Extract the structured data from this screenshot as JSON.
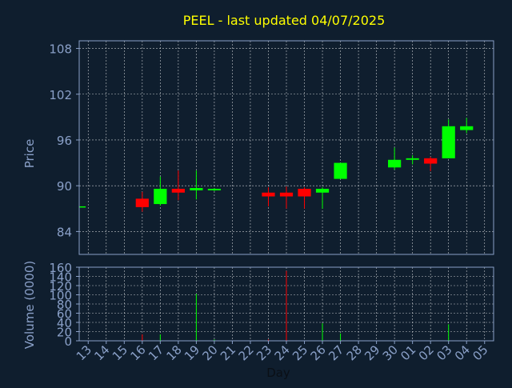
{
  "chart_data": {
    "type": "candlestick",
    "title": "PEEL - last updated 04/07/2025",
    "xlabel": "Day",
    "grid": true,
    "colors": {
      "background": "#0f1e2e",
      "axis": "#8aa0c8",
      "title": "#ffff00",
      "up": "#00ff00",
      "down": "#ff0000",
      "label": "#8aa0c8"
    },
    "categories": [
      "13",
      "14",
      "15",
      "16",
      "17",
      "18",
      "19",
      "20",
      "21",
      "22",
      "23",
      "24",
      "25",
      "26",
      "27",
      "28",
      "29",
      "30",
      "01",
      "02",
      "03",
      "04",
      "05"
    ],
    "price_panel": {
      "ylabel": "Price",
      "ylim": [
        81,
        109
      ],
      "yticks": [
        84,
        90,
        96,
        102,
        108
      ],
      "candles": [
        {
          "day": "13",
          "open": 87.3,
          "close": 87.3,
          "high": 87.3,
          "low": 87.3
        },
        {
          "day": "16",
          "open": 88.3,
          "close": 87.2,
          "high": 89.2,
          "low": 86.6
        },
        {
          "day": "17",
          "open": 87.6,
          "close": 89.6,
          "high": 91.2,
          "low": 87.4
        },
        {
          "day": "18",
          "open": 89.6,
          "close": 89.1,
          "high": 92.0,
          "low": 88.1
        },
        {
          "day": "19",
          "open": 89.4,
          "close": 89.7,
          "high": 92.0,
          "low": 88.2
        },
        {
          "day": "20",
          "open": 89.4,
          "close": 89.6,
          "high": 89.7,
          "low": 89.3
        },
        {
          "day": "23",
          "open": 89.1,
          "close": 88.6,
          "high": 89.8,
          "low": 87.3
        },
        {
          "day": "24",
          "open": 89.1,
          "close": 88.6,
          "high": 89.9,
          "low": 87.0
        },
        {
          "day": "25",
          "open": 89.6,
          "close": 88.6,
          "high": 89.8,
          "low": 87.0
        },
        {
          "day": "26",
          "open": 89.1,
          "close": 89.6,
          "high": 89.8,
          "low": 87.0
        },
        {
          "day": "27",
          "open": 90.9,
          "close": 93.0,
          "high": 93.0,
          "low": 90.9
        },
        {
          "day": "30",
          "open": 92.4,
          "close": 93.4,
          "high": 95.0,
          "low": 92.1
        },
        {
          "day": "01",
          "open": 93.4,
          "close": 93.6,
          "high": 94.0,
          "low": 92.8
        },
        {
          "day": "02",
          "open": 93.6,
          "close": 92.9,
          "high": 93.8,
          "low": 91.9
        },
        {
          "day": "03",
          "open": 93.6,
          "close": 97.8,
          "high": 98.7,
          "low": 93.6
        },
        {
          "day": "04",
          "open": 97.3,
          "close": 97.8,
          "high": 98.9,
          "low": 96.9
        }
      ]
    },
    "volume_panel": {
      "ylabel": "Volume (0000)",
      "ylim": [
        0,
        160
      ],
      "yticks": [
        0,
        20,
        40,
        60,
        80,
        100,
        120,
        140,
        160
      ],
      "bars": [
        {
          "day": "16",
          "value": 14,
          "direction": "down"
        },
        {
          "day": "17",
          "value": 14,
          "direction": "up"
        },
        {
          "day": "19",
          "value": 102,
          "direction": "up"
        },
        {
          "day": "20",
          "value": 3,
          "direction": "up"
        },
        {
          "day": "23",
          "value": 3,
          "direction": "down"
        },
        {
          "day": "24",
          "value": 152,
          "direction": "down"
        },
        {
          "day": "26",
          "value": 38,
          "direction": "up"
        },
        {
          "day": "27",
          "value": 16,
          "direction": "up"
        },
        {
          "day": "03",
          "value": 36,
          "direction": "up"
        }
      ]
    }
  }
}
